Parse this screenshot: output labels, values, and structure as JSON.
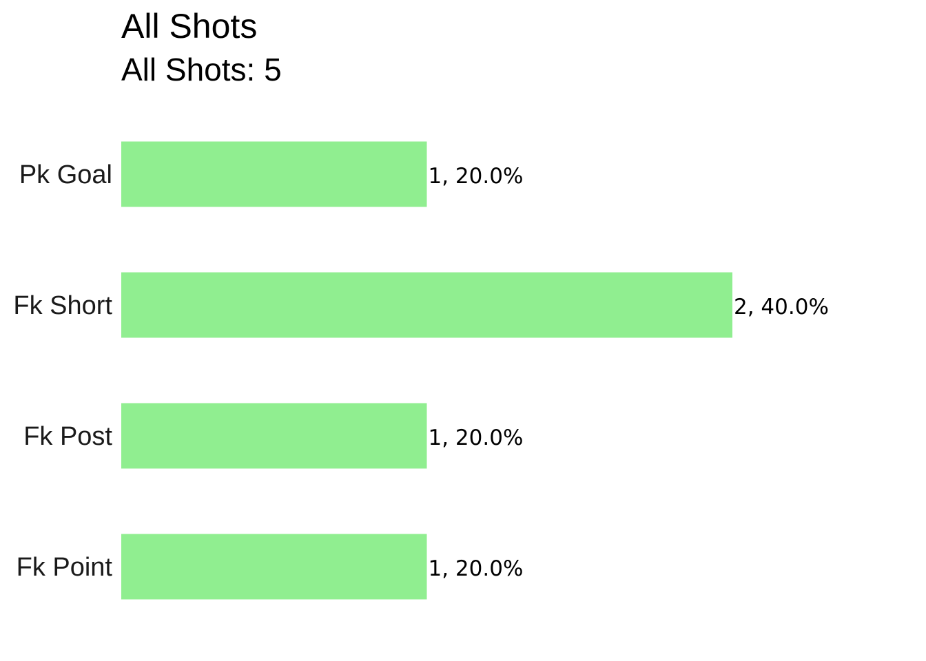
{
  "chart_data": {
    "type": "bar",
    "orientation": "horizontal",
    "title": "All Shots",
    "subtitle": "All Shots: 5",
    "categories": [
      "Pk Goal",
      "Fk Short",
      "Fk Post",
      "Fk Point"
    ],
    "values": [
      1,
      2,
      1,
      1
    ],
    "value_labels": [
      "1, 20.0%",
      "2, 40.0%",
      "1, 20.0%",
      "1, 20.0%"
    ],
    "xlim": [
      0,
      2
    ],
    "grid": false,
    "bar_color": "#90ee90"
  }
}
